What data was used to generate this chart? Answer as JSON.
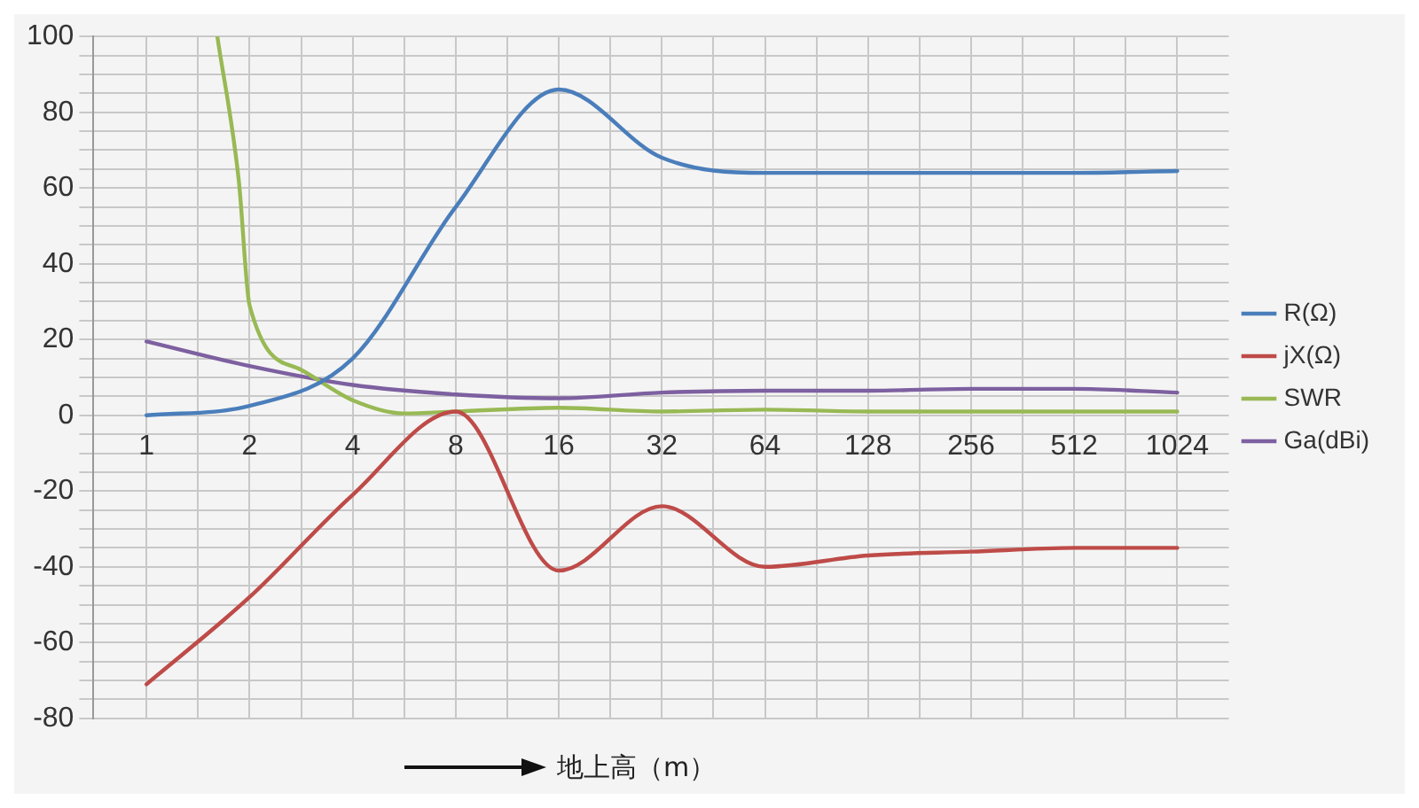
{
  "chart_data": {
    "type": "line",
    "xlabel": "地上高（m）",
    "x": [
      1,
      2,
      4,
      8,
      16,
      32,
      64,
      128,
      256,
      512,
      1024
    ],
    "log": "x",
    "xlim": [
      0.707,
      1448
    ],
    "xticks": [
      1,
      {
        "value": 1.414,
        "label": null
      },
      2,
      {
        "value": 2.828,
        "label": null
      },
      4,
      {
        "value": 5.657,
        "label": null
      },
      8,
      {
        "value": 11.31,
        "label": null
      },
      16,
      {
        "value": 22.63,
        "label": null
      },
      32,
      {
        "value": 45.25,
        "label": null
      },
      64,
      {
        "value": 90.51,
        "label": null
      },
      128,
      {
        "value": 181,
        "label": null
      },
      256,
      {
        "value": 362,
        "label": null
      },
      512,
      {
        "value": 724,
        "label": null
      },
      1024
    ],
    "ylim": [
      -80,
      100
    ],
    "yticks": [
      -80,
      {
        "value": -75,
        "label": null
      },
      {
        "value": -70,
        "label": null
      },
      {
        "value": -65,
        "label": null
      },
      -60,
      {
        "value": -55,
        "label": null
      },
      {
        "value": -50,
        "label": null
      },
      {
        "value": -45,
        "label": null
      },
      -40,
      {
        "value": -35,
        "label": null
      },
      {
        "value": -30,
        "label": null
      },
      {
        "value": -25,
        "label": null
      },
      -20,
      {
        "value": -15,
        "label": null
      },
      {
        "value": -10,
        "label": null
      },
      {
        "value": -5,
        "label": null
      },
      0,
      {
        "value": 5,
        "label": null
      },
      {
        "value": 10,
        "label": null
      },
      {
        "value": 15,
        "label": null
      },
      20,
      {
        "value": 25,
        "label": null
      },
      {
        "value": 30,
        "label": null
      },
      {
        "value": 35,
        "label": null
      },
      40,
      {
        "value": 45,
        "label": null
      },
      {
        "value": 50,
        "label": null
      },
      {
        "value": 55,
        "label": null
      },
      60,
      {
        "value": 65,
        "label": null
      },
      {
        "value": 70,
        "label": null
      },
      {
        "value": 75,
        "label": null
      },
      80,
      {
        "value": 85,
        "label": null
      },
      {
        "value": 90,
        "label": null
      },
      {
        "value": 95,
        "label": null
      },
      100
    ],
    "grid": true,
    "legend": "right",
    "marker": "none",
    "line_style": "solid",
    "series": [
      {
        "name": "R(Ω)",
        "color": "#4a7ebb",
        "values": [
          0,
          2.5,
          15,
          55,
          86,
          68,
          64,
          64,
          64,
          64,
          64.5
        ]
      },
      {
        "name": "jX(Ω)",
        "color": "#be4b48",
        "values": [
          -71,
          -48,
          -21,
          1,
          -41,
          -24,
          -40,
          -37,
          -36,
          -35,
          -35
        ]
      },
      {
        "name": "SWR",
        "color": "#98b954",
        "x": [
          1.61,
          1.86,
          2,
          2.83,
          4,
          5.66,
          8,
          16,
          32,
          64,
          128,
          256,
          512,
          1024
        ],
        "values": [
          100,
          62,
          29,
          12,
          4,
          0.5,
          1,
          2,
          1,
          1.5,
          1,
          1,
          1,
          1
        ]
      },
      {
        "name": "Ga(dBi)",
        "color": "#7d60a0",
        "values": [
          19.5,
          13,
          8,
          5.5,
          4.5,
          6,
          6.5,
          6.5,
          7,
          7,
          6
        ]
      }
    ]
  }
}
